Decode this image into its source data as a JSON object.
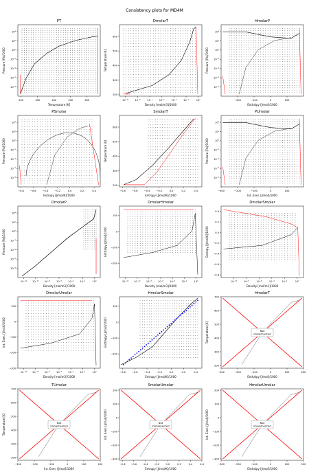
{
  "suptitle": "Consistency plots for MD4M",
  "not_implemented_text": [
    "Not",
    "implemented"
  ],
  "colors": {
    "curve": "#000000",
    "phase": "#ff0000",
    "points": "#000000",
    "highlight": "#0000ff",
    "axes": "#000000"
  },
  "chart_data": [
    {
      "type": "scatter",
      "title": "PT",
      "xlabel": "Temperature [K]",
      "ylabel": "Pressure [Pa]/1000",
      "xscale": "linear",
      "yscale": "log",
      "xticks": [
        {
          "v": 200,
          "l": "200"
        },
        {
          "v": 300,
          "l": "300"
        },
        {
          "v": 400,
          "l": "400"
        },
        {
          "v": 500,
          "l": "500"
        },
        {
          "v": 600,
          "l": "600"
        }
      ],
      "yticks": [
        {
          "v": -8,
          "l": "10⁻⁸"
        },
        {
          "v": -6,
          "l": "10⁻⁶"
        },
        {
          "v": -4,
          "l": "10⁻⁴"
        },
        {
          "v": -2,
          "l": "10⁻²"
        },
        {
          "v": 0,
          "l": "10⁰"
        },
        {
          "v": 2,
          "l": "10²"
        },
        {
          "v": 4,
          "l": "10⁴"
        }
      ],
      "xlim": [
        180,
        680
      ],
      "ylim": [
        -10,
        5.5
      ],
      "shape": "pt",
      "grid": false
    },
    {
      "type": "scatter",
      "title": "DmolarT",
      "xlabel": "Density [mol/m3]/1000",
      "ylabel": "Temperature [K]",
      "xscale": "log",
      "yscale": "linear",
      "xticks": [
        {
          "v": -11,
          "l": "10⁻¹¹"
        },
        {
          "v": -9,
          "l": "10⁻⁹"
        },
        {
          "v": -7,
          "l": "10⁻⁷"
        },
        {
          "v": -5,
          "l": "10⁻⁵"
        },
        {
          "v": -3,
          "l": "10⁻³"
        },
        {
          "v": -1,
          "l": "10⁻¹"
        },
        {
          "v": 1,
          "l": "10¹"
        }
      ],
      "yticks": [
        {
          "v": 200,
          "l": "200"
        },
        {
          "v": 300,
          "l": "300"
        },
        {
          "v": 400,
          "l": "400"
        },
        {
          "v": 500,
          "l": "500"
        },
        {
          "v": 600,
          "l": "600"
        }
      ],
      "xlim": [
        -12,
        1.6
      ],
      "ylim": [
        190,
        680
      ],
      "shape": "dt",
      "grid": false
    },
    {
      "type": "scatter",
      "title": "HmolarP",
      "xlabel": "Enthalpy [J/mol]/1000",
      "ylabel": "Pressure [Pa]/1000",
      "xscale": "linear",
      "yscale": "log",
      "xticks": [
        {
          "v": -200,
          "l": "−200"
        },
        {
          "v": -100,
          "l": "−100"
        },
        {
          "v": 0,
          "l": "0"
        },
        {
          "v": 100,
          "l": "100"
        }
      ],
      "yticks": [
        {
          "v": -8,
          "l": "10⁻⁸"
        },
        {
          "v": -6,
          "l": "10⁻⁶"
        },
        {
          "v": -4,
          "l": "10⁻⁴"
        },
        {
          "v": -2,
          "l": "10⁻²"
        },
        {
          "v": 0,
          "l": "10⁰"
        },
        {
          "v": 2,
          "l": "10²"
        },
        {
          "v": 4,
          "l": "10⁴"
        }
      ],
      "xlim": [
        -300,
        200
      ],
      "ylim": [
        -10,
        5.5
      ],
      "shape": "hp",
      "grid": false
    },
    {
      "type": "scatter",
      "title": "PSmolar",
      "xlabel": "Entropy [J/mol/K]/1000",
      "ylabel": "Pressure [Pa]/1000",
      "xscale": "linear",
      "yscale": "log",
      "xticks": [
        {
          "v": -0.8,
          "l": "−0.8"
        },
        {
          "v": -0.6,
          "l": "−0.6"
        },
        {
          "v": -0.4,
          "l": "−0.4"
        },
        {
          "v": -0.2,
          "l": "−0.2"
        },
        {
          "v": 0,
          "l": "0.0"
        },
        {
          "v": 0.2,
          "l": "0.2"
        },
        {
          "v": 0.4,
          "l": "0.4"
        }
      ],
      "yticks": [
        {
          "v": -8,
          "l": "10⁻⁸"
        },
        {
          "v": -6,
          "l": "10⁻⁶"
        },
        {
          "v": -4,
          "l": "10⁻⁴"
        },
        {
          "v": -2,
          "l": "10⁻²"
        },
        {
          "v": 0,
          "l": "10⁰"
        },
        {
          "v": 2,
          "l": "10²"
        },
        {
          "v": 4,
          "l": "10⁴"
        }
      ],
      "xlim": [
        -0.85,
        0.5
      ],
      "ylim": [
        -10,
        5.5
      ],
      "shape": "sp",
      "grid": false
    },
    {
      "type": "scatter",
      "title": "SmolarT",
      "xlabel": "Entropy [J/mol/K]/1000",
      "ylabel": "Temperature [K]",
      "xscale": "linear",
      "yscale": "linear",
      "xticks": [
        {
          "v": -0.8,
          "l": "−0.8"
        },
        {
          "v": -0.6,
          "l": "−0.6"
        },
        {
          "v": -0.4,
          "l": "−0.4"
        },
        {
          "v": -0.2,
          "l": "−0.2"
        },
        {
          "v": 0,
          "l": "0.0"
        },
        {
          "v": 0.2,
          "l": "0.2"
        },
        {
          "v": 0.4,
          "l": "0.4"
        }
      ],
      "yticks": [
        {
          "v": 200,
          "l": "200"
        },
        {
          "v": 300,
          "l": "300"
        },
        {
          "v": 400,
          "l": "400"
        },
        {
          "v": 500,
          "l": "500"
        },
        {
          "v": 600,
          "l": "600"
        }
      ],
      "xlim": [
        -0.85,
        0.5
      ],
      "ylim": [
        190,
        680
      ],
      "shape": "st",
      "grid": false
    },
    {
      "type": "scatter",
      "title": "PUmolar",
      "xlabel": "Int. Ener. [J/mol]/1000",
      "ylabel": "Pressure [Pa]/1000",
      "xscale": "linear",
      "yscale": "log",
      "xticks": [
        {
          "v": -300,
          "l": "−300"
        },
        {
          "v": -200,
          "l": "−200"
        },
        {
          "v": -100,
          "l": "−100"
        },
        {
          "v": 0,
          "l": "0"
        },
        {
          "v": 100,
          "l": "100"
        }
      ],
      "yticks": [
        {
          "v": -8,
          "l": "10⁻⁸"
        },
        {
          "v": -6,
          "l": "10⁻⁶"
        },
        {
          "v": -4,
          "l": "10⁻⁴"
        },
        {
          "v": -2,
          "l": "10⁻²"
        },
        {
          "v": 0,
          "l": "10⁰"
        },
        {
          "v": 2,
          "l": "10²"
        },
        {
          "v": 4,
          "l": "10⁴"
        }
      ],
      "xlim": [
        -300,
        200
      ],
      "ylim": [
        -10,
        5.5
      ],
      "shape": "up",
      "grid": false
    },
    {
      "type": "scatter",
      "title": "DmolarP",
      "xlabel": "Density [mol/m3]/1000",
      "ylabel": "Pressure [Pa]/1000",
      "xscale": "log",
      "yscale": "log",
      "xticks": [
        {
          "v": -12,
          "l": "10⁻¹²"
        },
        {
          "v": -10,
          "l": "10⁻¹⁰"
        },
        {
          "v": -8,
          "l": "10⁻⁸"
        },
        {
          "v": -6,
          "l": "10⁻⁶"
        },
        {
          "v": -4,
          "l": "10⁻⁴"
        },
        {
          "v": -2,
          "l": "10⁻²"
        },
        {
          "v": 0,
          "l": "10⁰"
        }
      ],
      "yticks": [
        {
          "v": -8,
          "l": "10⁻⁸"
        },
        {
          "v": -6,
          "l": "10⁻⁶"
        },
        {
          "v": -4,
          "l": "10⁻⁴"
        },
        {
          "v": -2,
          "l": "10⁻²"
        },
        {
          "v": 0,
          "l": "10⁰"
        },
        {
          "v": 2,
          "l": "10²"
        },
        {
          "v": 4,
          "l": "10⁴"
        }
      ],
      "xlim": [
        -13,
        1
      ],
      "ylim": [
        -10,
        5.5
      ],
      "shape": "dp",
      "grid": false
    },
    {
      "type": "scatter",
      "title": "DmolarHmolar",
      "xlabel": "Density [mol/m3]/1000",
      "ylabel": "Enthalpy [J/mol]/1000",
      "xscale": "log",
      "yscale": "linear",
      "xticks": [
        {
          "v": -12,
          "l": "10⁻¹²"
        },
        {
          "v": -10,
          "l": "10⁻¹⁰"
        },
        {
          "v": -8,
          "l": "10⁻⁸"
        },
        {
          "v": -6,
          "l": "10⁻⁶"
        },
        {
          "v": -4,
          "l": "10⁻⁴"
        },
        {
          "v": -2,
          "l": "10⁻²"
        },
        {
          "v": 0,
          "l": "10⁰"
        }
      ],
      "yticks": [
        {
          "v": -200,
          "l": "−200"
        },
        {
          "v": -100,
          "l": "−100"
        },
        {
          "v": 0,
          "l": "0"
        },
        {
          "v": 100,
          "l": "100"
        }
      ],
      "xlim": [
        -13,
        1
      ],
      "ylim": [
        -290,
        160
      ],
      "shape": "dh",
      "grid": false
    },
    {
      "type": "scatter",
      "title": "DmolarSmolar",
      "xlabel": "Density [mol/m3]/1000",
      "ylabel": "Entropy [J/mol/K]/1000",
      "xscale": "log",
      "yscale": "linear",
      "xticks": [
        {
          "v": -10,
          "l": "10⁻¹⁰"
        },
        {
          "v": -8,
          "l": "10⁻⁸"
        },
        {
          "v": -6,
          "l": "10⁻⁶"
        },
        {
          "v": -4,
          "l": "10⁻⁴"
        },
        {
          "v": -2,
          "l": "10⁻²"
        },
        {
          "v": 0,
          "l": "10⁰"
        }
      ],
      "yticks": [
        {
          "v": -0.8,
          "l": "−0.8"
        },
        {
          "v": -0.6,
          "l": "−0.6"
        },
        {
          "v": -0.4,
          "l": "−0.4"
        },
        {
          "v": -0.2,
          "l": "−0.2"
        },
        {
          "v": 0,
          "l": "0.0"
        },
        {
          "v": 0.2,
          "l": "0.2"
        },
        {
          "v": 0.4,
          "l": "0.4"
        }
      ],
      "xlim": [
        -12,
        1
      ],
      "ylim": [
        -0.85,
        0.5
      ],
      "shape": "ds",
      "grid": false
    },
    {
      "type": "scatter",
      "title": "DmolarUmolar",
      "xlabel": "Density [mol/m3]/1000",
      "ylabel": "Int. Ener. [J/mol]/1000",
      "xscale": "log",
      "yscale": "linear",
      "xticks": [
        {
          "v": -12,
          "l": "10⁻¹²"
        },
        {
          "v": -10,
          "l": "10⁻¹⁰"
        },
        {
          "v": -8,
          "l": "10⁻⁸"
        },
        {
          "v": -6,
          "l": "10⁻⁶"
        },
        {
          "v": -4,
          "l": "10⁻⁴"
        },
        {
          "v": -2,
          "l": "10⁻²"
        },
        {
          "v": 0,
          "l": "10⁰"
        }
      ],
      "yticks": [
        {
          "v": -300,
          "l": "−300"
        },
        {
          "v": -200,
          "l": "−200"
        },
        {
          "v": -100,
          "l": "−100"
        },
        {
          "v": 0,
          "l": "0"
        },
        {
          "v": 100,
          "l": "100"
        }
      ],
      "xlim": [
        -13,
        1
      ],
      "ylim": [
        -300,
        160
      ],
      "shape": "du",
      "grid": false
    },
    {
      "type": "scatter",
      "title": "HmolarSmolar",
      "xlabel": "Entropy [J/mol/K]/1000",
      "ylabel": "Enthalpy [J/mol]/1000",
      "xscale": "linear",
      "yscale": "linear",
      "xticks": [
        {
          "v": -0.8,
          "l": "−0.8"
        },
        {
          "v": -0.6,
          "l": "−0.6"
        },
        {
          "v": -0.4,
          "l": "−0.4"
        },
        {
          "v": -0.2,
          "l": "−0.2"
        },
        {
          "v": 0,
          "l": "0.0"
        },
        {
          "v": 0.2,
          "l": "0.2"
        },
        {
          "v": 0.4,
          "l": "0.4"
        }
      ],
      "yticks": [
        {
          "v": -200,
          "l": "−200"
        },
        {
          "v": -100,
          "l": "−100"
        },
        {
          "v": 0,
          "l": "0"
        },
        {
          "v": 100,
          "l": "100"
        }
      ],
      "xlim": [
        -0.85,
        0.5
      ],
      "ylim": [
        -290,
        160
      ],
      "shape": "hs",
      "grid": false
    },
    {
      "type": "line",
      "title": "HmolarT",
      "xlabel": "Enthalpy [J/mol]/1000",
      "ylabel": "Temperature [K]",
      "xscale": "linear",
      "yscale": "linear",
      "xticks": [
        {
          "v": -300,
          "l": "−300"
        },
        {
          "v": -200,
          "l": "−200"
        },
        {
          "v": -100,
          "l": "−100"
        },
        {
          "v": 0,
          "l": "0"
        },
        {
          "v": 100,
          "l": "100"
        },
        {
          "v": 200,
          "l": "200"
        }
      ],
      "yticks": [
        {
          "v": 200,
          "l": "200"
        },
        {
          "v": 300,
          "l": "300"
        },
        {
          "v": 400,
          "l": "400"
        },
        {
          "v": 500,
          "l": "500"
        },
        {
          "v": 600,
          "l": "600"
        },
        {
          "v": 700,
          "l": "700"
        }
      ],
      "xlim": [
        -300,
        200
      ],
      "ylim": [
        180,
        700
      ],
      "shape": "ni",
      "grid": false,
      "not_implemented": true
    },
    {
      "type": "line",
      "title": "TUmolar",
      "xlabel": "Int. Ener. [J/mol]/1000",
      "ylabel": "Temperature [K]",
      "xscale": "linear",
      "yscale": "linear",
      "xticks": [
        {
          "v": -300,
          "l": "−300"
        },
        {
          "v": -200,
          "l": "−200"
        },
        {
          "v": -100,
          "l": "−100"
        },
        {
          "v": 0,
          "l": "0"
        },
        {
          "v": 100,
          "l": "100"
        },
        {
          "v": 200,
          "l": "200"
        }
      ],
      "yticks": [
        {
          "v": 200,
          "l": "200"
        },
        {
          "v": 300,
          "l": "300"
        },
        {
          "v": 400,
          "l": "400"
        },
        {
          "v": 500,
          "l": "500"
        },
        {
          "v": 600,
          "l": "600"
        },
        {
          "v": 700,
          "l": "700"
        }
      ],
      "xlim": [
        -300,
        200
      ],
      "ylim": [
        180,
        700
      ],
      "shape": "ni",
      "grid": false,
      "not_implemented": true
    },
    {
      "type": "line",
      "title": "SmolarUmolar",
      "xlabel": "Entropy [J/mol/K]/1000",
      "ylabel": "Int. Ener. [J/mol]/1000",
      "xscale": "linear",
      "yscale": "linear",
      "xticks": [
        {
          "v": -0.8,
          "l": "−0.8"
        },
        {
          "v": -0.6,
          "l": "−0.6"
        },
        {
          "v": -0.4,
          "l": "−0.4"
        },
        {
          "v": -0.2,
          "l": "−0.2"
        },
        {
          "v": 0,
          "l": "0.0"
        },
        {
          "v": 0.2,
          "l": "0.2"
        },
        {
          "v": 0.4,
          "l": "0.4"
        },
        {
          "v": 0.6,
          "l": "0.6"
        }
      ],
      "yticks": [
        {
          "v": -300,
          "l": "−300"
        },
        {
          "v": -200,
          "l": "−200"
        },
        {
          "v": -100,
          "l": "−100"
        },
        {
          "v": 0,
          "l": "0"
        },
        {
          "v": 100,
          "l": "100"
        },
        {
          "v": 200,
          "l": "200"
        }
      ],
      "xlim": [
        -0.85,
        0.6
      ],
      "ylim": [
        -310,
        210
      ],
      "shape": "ni",
      "grid": false,
      "not_implemented": true
    },
    {
      "type": "line",
      "title": "HmolarUmolar",
      "xlabel": "Enthalpy [J/mol]/1000",
      "ylabel": "Int. Ener. [J/mol]/1000",
      "xscale": "linear",
      "yscale": "linear",
      "xticks": [
        {
          "v": -300,
          "l": "−300"
        },
        {
          "v": -200,
          "l": "−200"
        },
        {
          "v": -100,
          "l": "−100"
        },
        {
          "v": 0,
          "l": "0"
        },
        {
          "v": 100,
          "l": "100"
        },
        {
          "v": 200,
          "l": "200"
        }
      ],
      "yticks": [
        {
          "v": -300,
          "l": "−300"
        },
        {
          "v": -200,
          "l": "−200"
        },
        {
          "v": -100,
          "l": "−100"
        },
        {
          "v": 0,
          "l": "0"
        },
        {
          "v": 100,
          "l": "100"
        },
        {
          "v": 200,
          "l": "200"
        }
      ],
      "xlim": [
        -300,
        200
      ],
      "ylim": [
        -310,
        210
      ],
      "shape": "ni",
      "grid": false,
      "not_implemented": true
    }
  ]
}
